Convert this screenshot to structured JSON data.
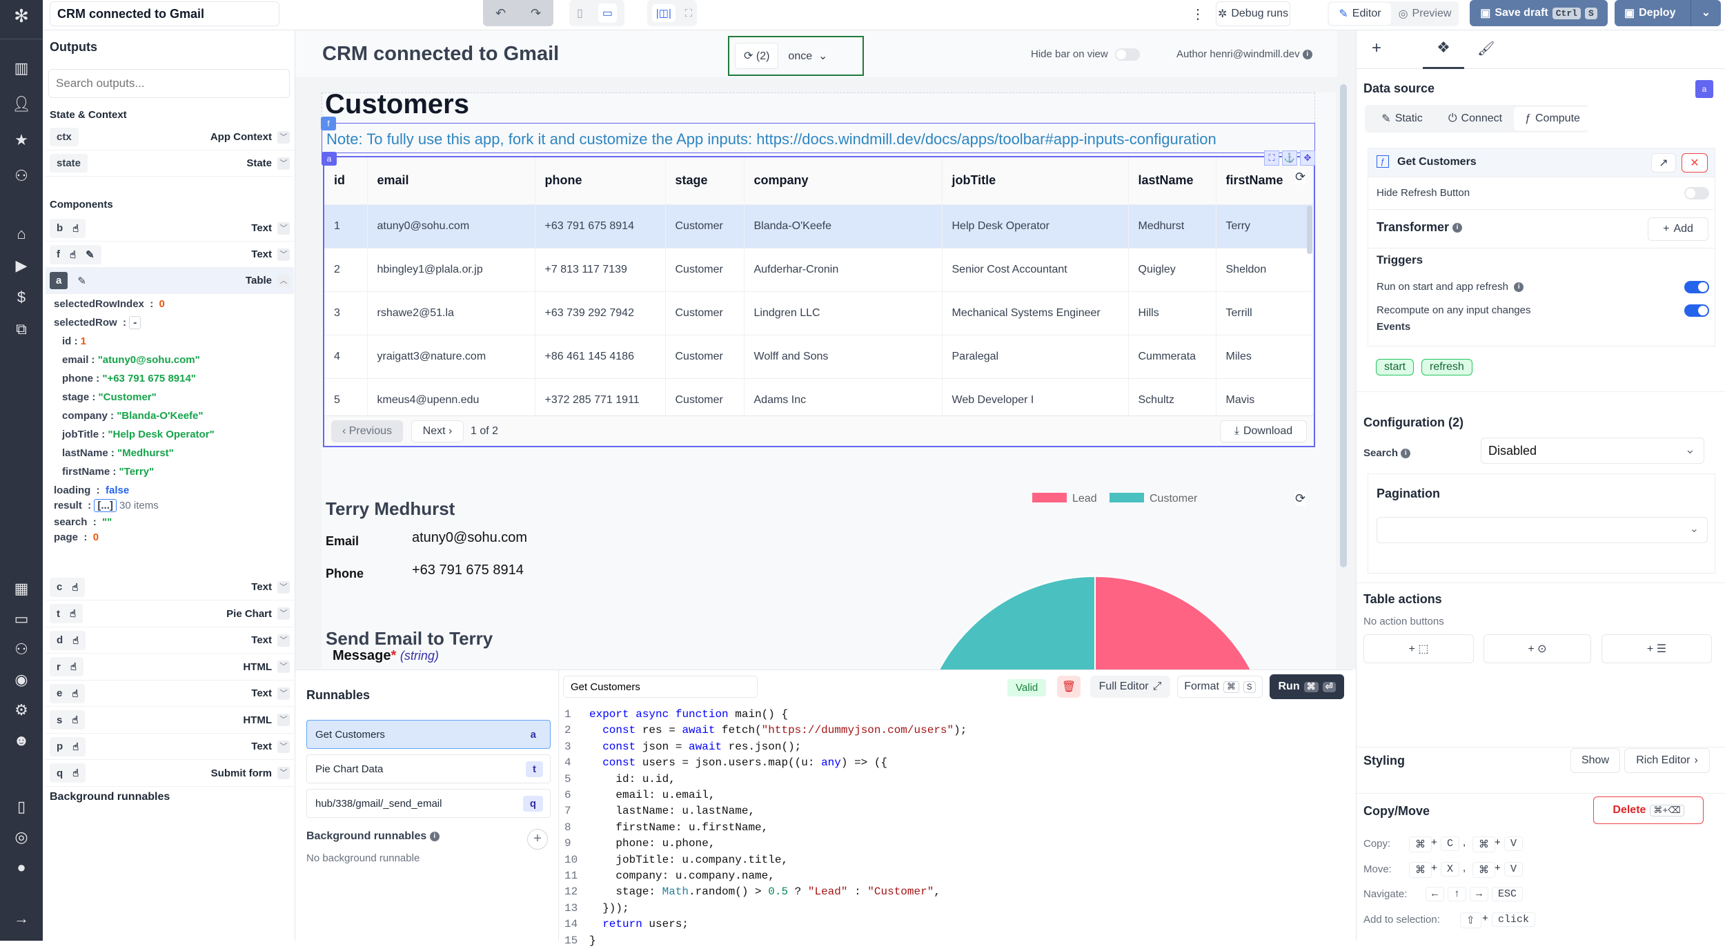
{
  "topbar": {
    "app_title": "CRM connected to Gmail",
    "debug_runs": "Debug runs",
    "editor": "Editor",
    "preview": "Preview",
    "save_draft": "Save draft",
    "save_keys": [
      "Ctrl",
      "S"
    ],
    "deploy": "Deploy"
  },
  "outputs": {
    "title": "Outputs",
    "search_placeholder": "Search outputs...",
    "state_context_title": "State & Context",
    "state_items": [
      {
        "id": "ctx",
        "type": "App Context"
      },
      {
        "id": "state",
        "type": "State"
      }
    ],
    "components_title": "Components",
    "components_top": [
      {
        "id": "b",
        "type": "Text",
        "icons": [
          "hand-icon"
        ]
      },
      {
        "id": "f",
        "type": "Text",
        "icons": [
          "hand-icon",
          "pencil-icon"
        ]
      }
    ],
    "selected_component": {
      "id": "a",
      "type": "Table"
    },
    "table_outputs": {
      "selectedRowIndex": "0",
      "selectedRow_toggle": "-",
      "selectedRow": [
        {
          "k": "id",
          "v": "1",
          "t": "n"
        },
        {
          "k": "email",
          "v": "\"atuny0@sohu.com\"",
          "t": "s"
        },
        {
          "k": "phone",
          "v": "\"+63 791 675 8914\"",
          "t": "s"
        },
        {
          "k": "stage",
          "v": "\"Customer\"",
          "t": "s"
        },
        {
          "k": "company",
          "v": "\"Blanda-O'Keefe\"",
          "t": "s"
        },
        {
          "k": "jobTitle",
          "v": "\"Help Desk Operator\"",
          "t": "s"
        },
        {
          "k": "lastName",
          "v": "\"Medhurst\"",
          "t": "s"
        },
        {
          "k": "firstName",
          "v": "\"Terry\"",
          "t": "s"
        }
      ],
      "loading": "false",
      "result_button": "[...]",
      "result_count": "30 items",
      "search": "\"\"",
      "page": "0"
    },
    "components_bottom": [
      {
        "id": "c",
        "type": "Text"
      },
      {
        "id": "t",
        "type": "Pie Chart"
      },
      {
        "id": "d",
        "type": "Text"
      },
      {
        "id": "r",
        "type": "HTML"
      },
      {
        "id": "e",
        "type": "Text"
      },
      {
        "id": "s",
        "type": "HTML"
      },
      {
        "id": "p",
        "type": "Text"
      },
      {
        "id": "q",
        "type": "Submit form"
      }
    ],
    "background_title": "Background runnables"
  },
  "canvas": {
    "app_title": "CRM connected to Gmail",
    "refresh_count": "(2)",
    "refresh_mode": "once",
    "hide_bar_label": "Hide bar on view",
    "author": "Author henri@windmill.dev",
    "customers_heading": "Customers",
    "note": "Note: To fully use this app, fork it and customize the App inputs: https://docs.windmill.dev/docs/apps/toolbar#app-inputs-configuration",
    "badge_f": "f",
    "badge_a": "a",
    "table": {
      "columns": [
        "id",
        "email",
        "phone",
        "stage",
        "company",
        "jobTitle",
        "lastName",
        "firstName"
      ],
      "rows": [
        [
          "1",
          "atuny0@sohu.com",
          "+63 791 675 8914",
          "Customer",
          "Blanda-O'Keefe",
          "Help Desk Operator",
          "Medhurst",
          "Terry"
        ],
        [
          "2",
          "hbingley1@plala.or.jp",
          "+7 813 117 7139",
          "Customer",
          "Aufderhar-Cronin",
          "Senior Cost Accountant",
          "Quigley",
          "Sheldon"
        ],
        [
          "3",
          "rshawe2@51.la",
          "+63 739 292 7942",
          "Customer",
          "Lindgren LLC",
          "Mechanical Systems Engineer",
          "Hills",
          "Terrill"
        ],
        [
          "4",
          "yraigatt3@nature.com",
          "+86 461 145 4186",
          "Customer",
          "Wolff and Sons",
          "Paralegal",
          "Cummerata",
          "Miles"
        ],
        [
          "5",
          "kmeus4@upenn.edu",
          "+372 285 771 1911",
          "Customer",
          "Adams Inc",
          "Web Developer I",
          "Schultz",
          "Mavis"
        ]
      ],
      "selected_row": 0,
      "previous": "‹ Previous",
      "next": "Next ›",
      "page_info": "1 of 2",
      "download": "Download"
    },
    "contact": {
      "name": "Terry Medhurst",
      "email_label": "Email",
      "email_value": "atuny0@sohu.com",
      "phone_label": "Phone",
      "phone_value": "+63 791 675 8914",
      "send_heading": "Send Email to Terry",
      "message_label": "Message",
      "message_required": "*",
      "message_type": "(string)"
    }
  },
  "chart_data": {
    "type": "pie",
    "categories": [
      "Lead",
      "Customer"
    ],
    "values": [
      15,
      15
    ],
    "colors": [
      "#ff6384",
      "#4bc0c0"
    ],
    "legend": "top"
  },
  "runnables": {
    "title": "Runnables",
    "items": [
      {
        "label": "Get Customers",
        "id": "a",
        "selected": true
      },
      {
        "label": "Pie Chart Data",
        "id": "t"
      },
      {
        "label": "hub/338/gmail/_send_email",
        "id": "q"
      }
    ],
    "background_title": "Background runnables",
    "background_empty": "No background runnable"
  },
  "editor": {
    "name": "Get Customers",
    "valid": "Valid",
    "full_editor": "Full Editor",
    "format": "Format",
    "format_keys": [
      "⌘",
      "S"
    ],
    "run": "Run",
    "run_keys": [
      "⌘",
      "⏎"
    ],
    "code": [
      "export async function main() {",
      "  const res = await fetch(\"https://dummyjson.com/users\");",
      "  const json = await res.json();",
      "  const users = json.users.map((u: any) => ({",
      "    id: u.id,",
      "    email: u.email,",
      "    lastName: u.lastName,",
      "    firstName: u.firstName,",
      "    phone: u.phone,",
      "    jobTitle: u.company.title,",
      "    company: u.company.name,",
      "    stage: Math.random() > 0.5 ? \"Lead\" : \"Customer\",",
      "  }));",
      "  return users;",
      "}"
    ]
  },
  "right_panel": {
    "data_source_title": "Data source",
    "component_badge": "a",
    "source_tabs": [
      "Static",
      "Connect",
      "Compute"
    ],
    "active_source_tab": "Compute",
    "runnable_name": "Get Customers",
    "hide_refresh_label": "Hide Refresh Button",
    "hide_refresh_on": false,
    "transformer_title": "Transformer",
    "add_label": "Add",
    "triggers_title": "Triggers",
    "run_on_start_label": "Run on start and app refresh",
    "run_on_start_on": true,
    "recompute_label": "Recompute on any input changes",
    "recompute_on": true,
    "events_title": "Events",
    "events": [
      "start",
      "refresh"
    ],
    "configuration_title": "Configuration (2)",
    "search_label": "Search",
    "search_value": "Disabled",
    "pagination_title": "Pagination",
    "pagination_value": "",
    "table_actions_title": "Table actions",
    "no_actions": "No action buttons",
    "styling_title": "Styling",
    "show_label": "Show",
    "rich_editor_label": "Rich Editor",
    "copy_move_title": "Copy/Move",
    "delete_label": "Delete",
    "delete_keys": "⌘+⌫",
    "shortcuts": [
      {
        "label": "Copy:",
        "keys": [
          "⌘",
          "+",
          "C",
          ",",
          "⌘",
          "+",
          "V"
        ]
      },
      {
        "label": "Move:",
        "keys": [
          "⌘",
          "+",
          "X",
          ",",
          "⌘",
          "+",
          "V"
        ]
      },
      {
        "label": "Navigate:",
        "keys": [
          "←",
          "↑",
          "→",
          "ESC"
        ]
      },
      {
        "label": "Add to selection:",
        "keys": [
          "⇧",
          "+",
          "click"
        ]
      }
    ]
  },
  "colors": {
    "nav_bg": "#2e3441",
    "accent": "#2563eb",
    "save_draft_bg": "#5d7ba6",
    "selection": "#6366f1",
    "valid_green": "#16a34a"
  }
}
